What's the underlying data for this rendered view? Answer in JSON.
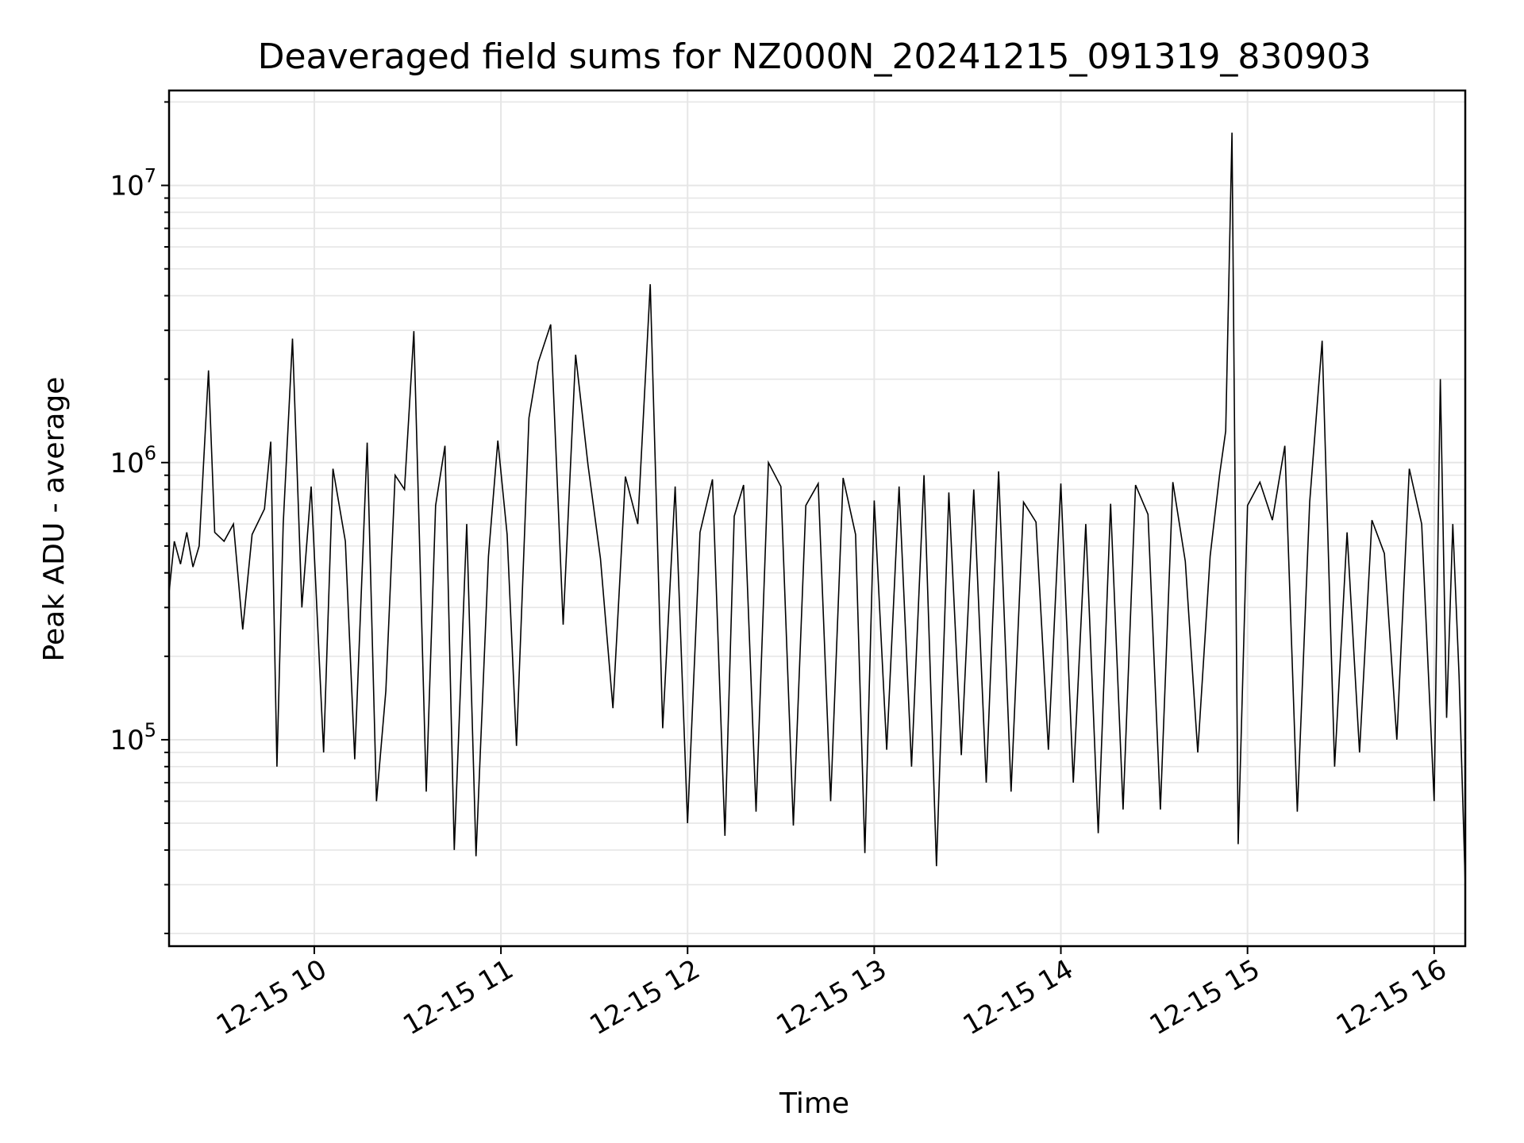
{
  "chart_data": {
    "type": "line",
    "title": "Deaveraged field sums for NZ000N_20241215_091319_830903",
    "xlabel": "Time",
    "ylabel": "Peak ADU - average",
    "yscale": "log",
    "xlim": [
      "2024-12-15T09:13:19",
      "2024-12-15T16:10:00"
    ],
    "ylim": [
      18000,
      22000000
    ],
    "x_ticks": [
      {
        "value": "2024-12-15T10:00:00",
        "label": "12-15 10"
      },
      {
        "value": "2024-12-15T11:00:00",
        "label": "12-15 11"
      },
      {
        "value": "2024-12-15T12:00:00",
        "label": "12-15 12"
      },
      {
        "value": "2024-12-15T13:00:00",
        "label": "12-15 13"
      },
      {
        "value": "2024-12-15T14:00:00",
        "label": "12-15 14"
      },
      {
        "value": "2024-12-15T15:00:00",
        "label": "12-15 15"
      },
      {
        "value": "2024-12-15T16:00:00",
        "label": "12-15 16"
      }
    ],
    "y_ticks": [
      {
        "value": 100000,
        "base": "10",
        "exp": "5"
      },
      {
        "value": 1000000,
        "base": "10",
        "exp": "6"
      },
      {
        "value": 10000000,
        "base": "10",
        "exp": "7"
      }
    ],
    "grid": true,
    "line_color": "#000000",
    "grid_color": "#e6e6e6",
    "series": [
      {
        "x": [
          "2024-12-15T09:13:19",
          "2024-12-15T09:15:00",
          "2024-12-15T09:17:00",
          "2024-12-15T09:19:00",
          "2024-12-15T09:21:00",
          "2024-12-15T09:23:00",
          "2024-12-15T09:26:00",
          "2024-12-15T09:28:00",
          "2024-12-15T09:31:00",
          "2024-12-15T09:34:00",
          "2024-12-15T09:37:00",
          "2024-12-15T09:40:00",
          "2024-12-15T09:44:00",
          "2024-12-15T09:46:00",
          "2024-12-15T09:48:00",
          "2024-12-15T09:50:00",
          "2024-12-15T09:53:00",
          "2024-12-15T09:56:00",
          "2024-12-15T09:59:00",
          "2024-12-15T10:03:00",
          "2024-12-15T10:06:00",
          "2024-12-15T10:10:00",
          "2024-12-15T10:13:00",
          "2024-12-15T10:17:00",
          "2024-12-15T10:20:00",
          "2024-12-15T10:23:00",
          "2024-12-15T10:26:00",
          "2024-12-15T10:29:00",
          "2024-12-15T10:32:00",
          "2024-12-15T10:36:00",
          "2024-12-15T10:39:00",
          "2024-12-15T10:42:00",
          "2024-12-15T10:45:00",
          "2024-12-15T10:49:00",
          "2024-12-15T10:52:00",
          "2024-12-15T10:56:00",
          "2024-12-15T10:59:00",
          "2024-12-15T11:02:00",
          "2024-12-15T11:05:00",
          "2024-12-15T11:09:00",
          "2024-12-15T11:12:00",
          "2024-12-15T11:16:00",
          "2024-12-15T11:20:00",
          "2024-12-15T11:24:00",
          "2024-12-15T11:28:00",
          "2024-12-15T11:32:00",
          "2024-12-15T11:36:00",
          "2024-12-15T11:40:00",
          "2024-12-15T11:44:00",
          "2024-12-15T11:48:00",
          "2024-12-15T11:52:00",
          "2024-12-15T11:56:00",
          "2024-12-15T12:00:00",
          "2024-12-15T12:04:00",
          "2024-12-15T12:08:00",
          "2024-12-15T12:12:00",
          "2024-12-15T12:15:00",
          "2024-12-15T12:18:00",
          "2024-12-15T12:22:00",
          "2024-12-15T12:26:00",
          "2024-12-15T12:30:00",
          "2024-12-15T12:34:00",
          "2024-12-15T12:38:00",
          "2024-12-15T12:42:00",
          "2024-12-15T12:46:00",
          "2024-12-15T12:50:00",
          "2024-12-15T12:54:00",
          "2024-12-15T12:57:00",
          "2024-12-15T13:00:00",
          "2024-12-15T13:04:00",
          "2024-12-15T13:08:00",
          "2024-12-15T13:12:00",
          "2024-12-15T13:16:00",
          "2024-12-15T13:20:00",
          "2024-12-15T13:24:00",
          "2024-12-15T13:28:00",
          "2024-12-15T13:32:00",
          "2024-12-15T13:36:00",
          "2024-12-15T13:40:00",
          "2024-12-15T13:44:00",
          "2024-12-15T13:48:00",
          "2024-12-15T13:52:00",
          "2024-12-15T13:56:00",
          "2024-12-15T14:00:00",
          "2024-12-15T14:04:00",
          "2024-12-15T14:08:00",
          "2024-12-15T14:12:00",
          "2024-12-15T14:16:00",
          "2024-12-15T14:20:00",
          "2024-12-15T14:24:00",
          "2024-12-15T14:28:00",
          "2024-12-15T14:32:00",
          "2024-12-15T14:36:00",
          "2024-12-15T14:40:00",
          "2024-12-15T14:44:00",
          "2024-12-15T14:48:00",
          "2024-12-15T14:51:00",
          "2024-12-15T14:53:00",
          "2024-12-15T14:55:00",
          "2024-12-15T14:57:00",
          "2024-12-15T15:00:00",
          "2024-12-15T15:04:00",
          "2024-12-15T15:08:00",
          "2024-12-15T15:12:00",
          "2024-12-15T15:16:00",
          "2024-12-15T15:20:00",
          "2024-12-15T15:24:00",
          "2024-12-15T15:28:00",
          "2024-12-15T15:32:00",
          "2024-12-15T15:36:00",
          "2024-12-15T15:40:00",
          "2024-12-15T15:44:00",
          "2024-12-15T15:48:00",
          "2024-12-15T15:52:00",
          "2024-12-15T15:56:00",
          "2024-12-15T16:00:00",
          "2024-12-15T16:02:00",
          "2024-12-15T16:04:00",
          "2024-12-15T16:06:00",
          "2024-12-15T16:08:00",
          "2024-12-15T16:10:00"
        ],
        "values": [
          340000,
          520000,
          430000,
          560000,
          420000,
          500000,
          2150000,
          560000,
          520000,
          600000,
          250000,
          550000,
          680000,
          1190000,
          80000,
          600000,
          2800000,
          300000,
          820000,
          90000,
          950000,
          520000,
          85000,
          1180000,
          60000,
          150000,
          900000,
          800000,
          2980000,
          65000,
          700000,
          1150000,
          40000,
          600000,
          38000,
          460000,
          1200000,
          550000,
          95000,
          1450000,
          2300000,
          3150000,
          260000,
          2450000,
          980000,
          450000,
          130000,
          890000,
          600000,
          4400000,
          110000,
          820000,
          50000,
          560000,
          870000,
          45000,
          640000,
          830000,
          55000,
          1000000,
          820000,
          49000,
          700000,
          840000,
          60000,
          880000,
          550000,
          39000,
          730000,
          92000,
          820000,
          80000,
          900000,
          35000,
          780000,
          88000,
          800000,
          70000,
          930000,
          65000,
          720000,
          610000,
          92000,
          840000,
          70000,
          600000,
          46000,
          710000,
          56000,
          830000,
          650000,
          56000,
          850000,
          440000,
          90000,
          460000,
          900000,
          1300000,
          15500000,
          42000,
          700000,
          850000,
          620000,
          1150000,
          55000,
          720000,
          2750000,
          80000,
          560000,
          90000,
          620000,
          470000,
          100000,
          950000,
          600000,
          60000,
          2000000,
          120000,
          600000,
          170000,
          30000
        ]
      }
    ]
  }
}
